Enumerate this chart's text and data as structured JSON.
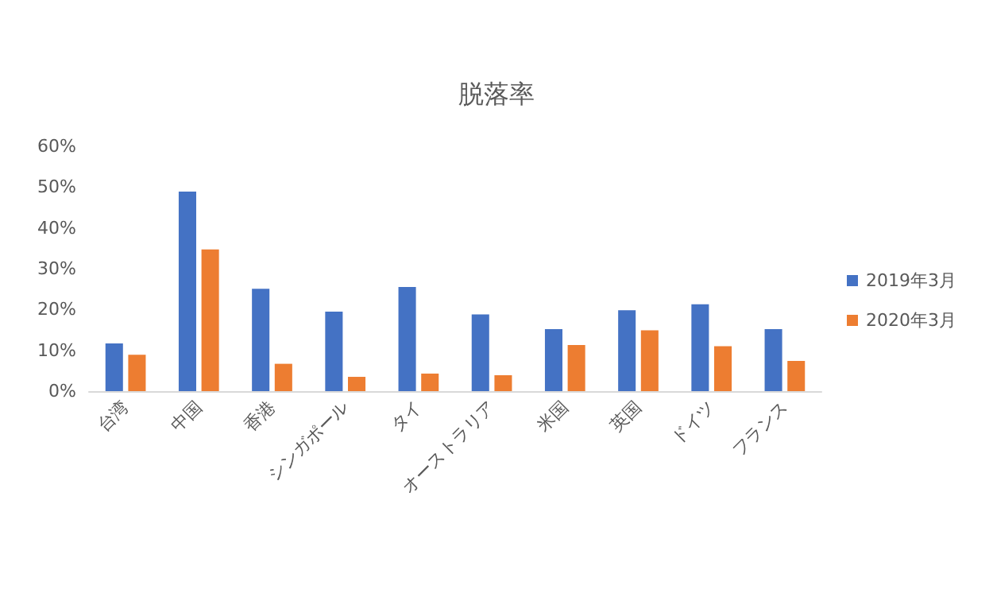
{
  "chart_data": {
    "type": "bar",
    "title": "脱落率",
    "categories": [
      "台湾",
      "中国",
      "香港",
      "シンガポール",
      "タイ",
      "オーストラリア",
      "米国",
      "英国",
      "ドイツ",
      "フランス"
    ],
    "series": [
      {
        "name": "2019年3月",
        "color": "#4472c4",
        "values": [
          11.7,
          48.9,
          25.1,
          19.5,
          25.5,
          18.8,
          15.2,
          19.8,
          21.3,
          15.2
        ]
      },
      {
        "name": "2020年3月",
        "color": "#ed7d31",
        "values": [
          8.9,
          34.7,
          6.7,
          3.5,
          4.3,
          3.9,
          11.3,
          14.9,
          11.0,
          7.4
        ]
      }
    ],
    "ylim": [
      0,
      60
    ],
    "yticks": [
      {
        "value": 0,
        "label": "0%"
      },
      {
        "value": 10,
        "label": "10%"
      },
      {
        "value": 20,
        "label": "20%"
      },
      {
        "value": 30,
        "label": "30%"
      },
      {
        "value": 40,
        "label": "40%"
      },
      {
        "value": 50,
        "label": "50%"
      },
      {
        "value": 60,
        "label": "60%"
      }
    ],
    "grid": false,
    "legend": "right"
  }
}
